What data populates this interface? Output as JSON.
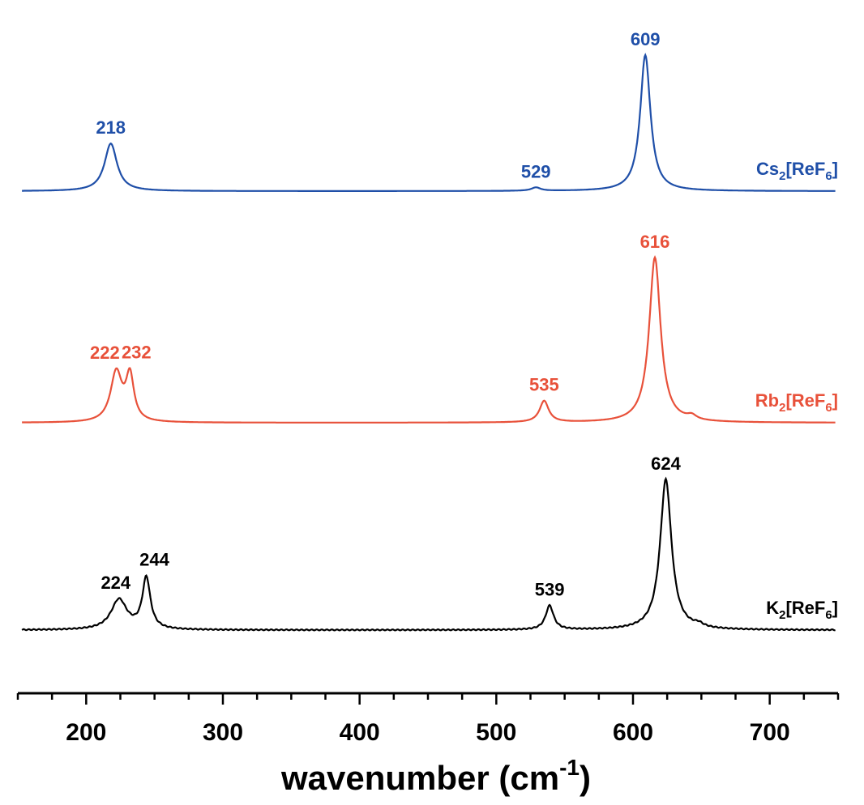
{
  "chart_data": {
    "type": "line",
    "title": "",
    "xlabel": "wavenumber (cm",
    "xlabel_sup": "-1",
    "xlabel_close": ")",
    "ylabel": "",
    "xlim": [
      150,
      750
    ],
    "x_ticks": [
      200,
      300,
      400,
      500,
      600,
      700
    ],
    "x_tick_labels": [
      "200",
      "300",
      "400",
      "500",
      "600",
      "700"
    ],
    "grid": false,
    "series": [
      {
        "name_main": "Cs",
        "name_sub1": "2",
        "name_mid": "[ReF",
        "name_sub2": "6",
        "name_end": "]",
        "color": "#1f4fa8",
        "peaks": [
          {
            "x": 218,
            "height": 0.35,
            "width": 5.5,
            "label": "218"
          },
          {
            "x": 529,
            "height": 0.025,
            "width": 4,
            "label": "529"
          },
          {
            "x": 609,
            "height": 1.0,
            "width": 4.5,
            "label": "609"
          }
        ]
      },
      {
        "name_main": "Rb",
        "name_sub1": "2",
        "name_mid": "[ReF",
        "name_sub2": "6",
        "name_end": "]",
        "color": "#e8513a",
        "peaks": [
          {
            "x": 222,
            "height": 0.3,
            "width": 5,
            "label": "222"
          },
          {
            "x": 232,
            "height": 0.27,
            "width": 3.5,
            "label": "232"
          },
          {
            "x": 535,
            "height": 0.13,
            "width": 4,
            "label": "535"
          },
          {
            "x": 616,
            "height": 1.0,
            "width": 5,
            "label": "616"
          },
          {
            "x": 643,
            "height": 0.025,
            "width": 4,
            "label": ""
          }
        ]
      },
      {
        "name_main": "K",
        "name_sub1": "2",
        "name_mid": "[ReF",
        "name_sub2": "6",
        "name_end": "]",
        "color": "#000000",
        "peaks": [
          {
            "x": 224,
            "height": 0.2,
            "width": 7,
            "label": "224"
          },
          {
            "x": 244,
            "height": 0.34,
            "width": 3.5,
            "label": "244"
          },
          {
            "x": 539,
            "height": 0.16,
            "width": 3.5,
            "label": "539"
          },
          {
            "x": 624,
            "height": 1.0,
            "width": 5,
            "label": "624"
          },
          {
            "x": 648,
            "height": 0.02,
            "width": 4,
            "label": ""
          }
        ]
      }
    ]
  }
}
